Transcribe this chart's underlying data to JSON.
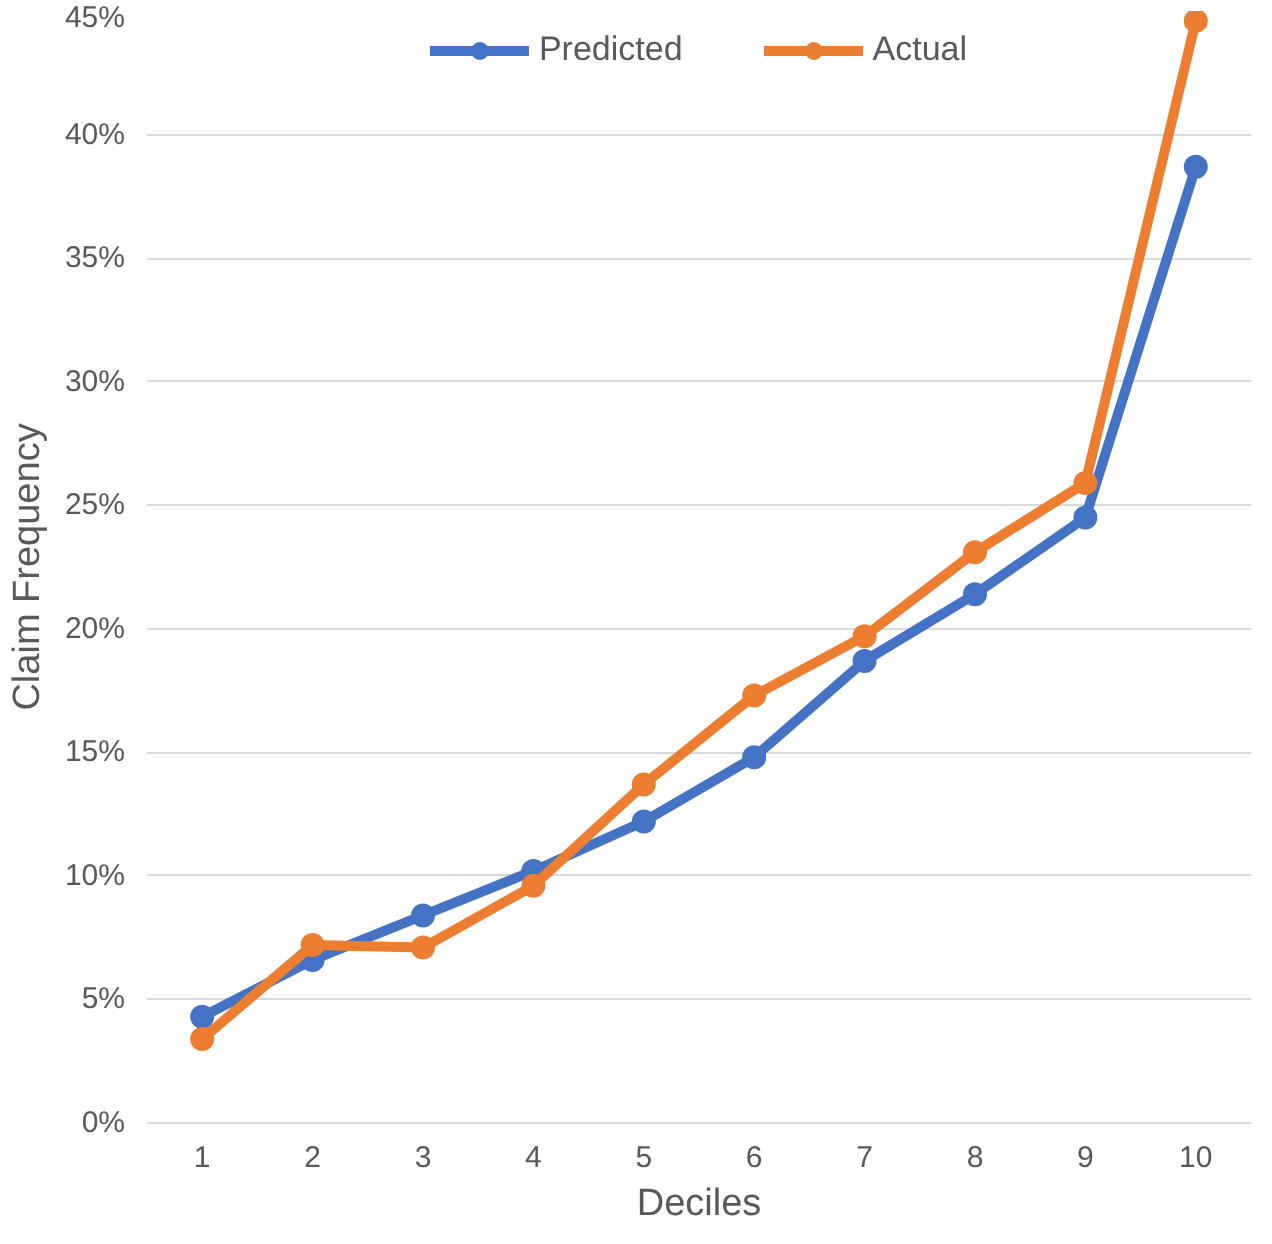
{
  "chart_data": {
    "type": "line",
    "xlabel": "Deciles",
    "ylabel": "Claim Frequency",
    "categories": [
      "1",
      "2",
      "3",
      "4",
      "5",
      "6",
      "7",
      "8",
      "9",
      "10"
    ],
    "series": [
      {
        "name": "Predicted",
        "color": "#4472c4",
        "values": [
          4.3,
          6.6,
          8.4,
          10.2,
          12.2,
          14.8,
          18.7,
          21.4,
          24.5,
          38.7
        ]
      },
      {
        "name": "Actual",
        "color": "#ed7d31",
        "values": [
          3.4,
          7.2,
          7.1,
          9.6,
          13.7,
          17.3,
          19.7,
          23.1,
          25.9,
          44.6
        ]
      }
    ],
    "ylim": [
      0,
      45
    ],
    "yticks": [
      {
        "value": 0,
        "label": "0%"
      },
      {
        "value": 5,
        "label": "5%"
      },
      {
        "value": 10,
        "label": "10%"
      },
      {
        "value": 15,
        "label": "15%"
      },
      {
        "value": 20,
        "label": "20%"
      },
      {
        "value": 25,
        "label": "25%"
      },
      {
        "value": 30,
        "label": "30%"
      },
      {
        "value": 35,
        "label": "35%"
      },
      {
        "value": 40,
        "label": "40%"
      },
      {
        "value": 45,
        "label": "45%"
      }
    ],
    "grid": "y",
    "legend": "top",
    "marker": "circle",
    "line_style": "solid"
  }
}
